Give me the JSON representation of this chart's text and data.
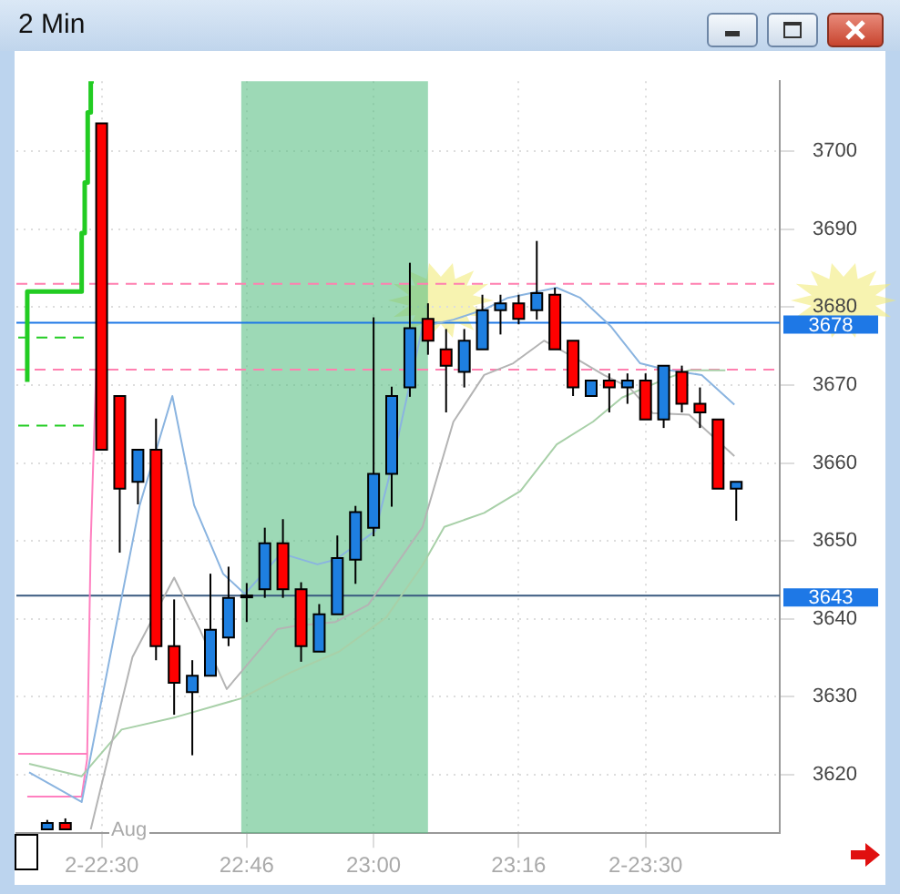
{
  "chart_data": {
    "type": "candlestick",
    "title": "2 Min",
    "xlim": [
      22.3433,
      23.7467
    ],
    "ylim": [
      3612.5,
      3709
    ],
    "xticks": [
      {
        "value": 22.5,
        "label": "2-22:30"
      },
      {
        "value": 22.7667,
        "label": "22:46"
      },
      {
        "value": 23,
        "label": "23:00"
      },
      {
        "value": 23.2667,
        "label": "23:16"
      },
      {
        "value": 23.5,
        "label": "2-23:30"
      }
    ],
    "yticks": [
      3620,
      3630,
      3640,
      3650,
      3660,
      3670,
      3680,
      3690,
      3700
    ],
    "grid": true,
    "legend": false,
    "marker": "none",
    "annotations": [
      "Aug"
    ],
    "ref_lines": [
      {
        "axis": "y",
        "value": 3683,
        "color": "#ff80b0",
        "line_style": "dashed"
      },
      {
        "axis": "y",
        "value": 3672,
        "color": "#ff80b0",
        "line_style": "dashed"
      },
      {
        "axis": "y",
        "value": 3678,
        "label": "3678",
        "color": "#1e78e6"
      },
      {
        "axis": "y",
        "value": 3643,
        "label": "3643",
        "color": "#3a5a80"
      }
    ],
    "bands": [
      {
        "axis": "x",
        "from": 22.7567,
        "to": 23.1,
        "color": "#5cbf85"
      }
    ],
    "series": [
      {
        "x": [
          22.4,
          22.4333,
          22.5,
          22.5333,
          22.5667,
          22.6,
          22.6333,
          22.6667,
          22.7,
          22.7333,
          22.7667,
          22.8,
          22.8333,
          22.8667,
          22.9,
          22.9333,
          22.9667,
          23,
          23.0333,
          23.0667,
          23.1,
          23.1333,
          23.1667,
          23.2,
          23.2333,
          23.2667,
          23.3,
          23.3333,
          23.3667,
          23.4,
          23.4333,
          23.4667,
          23.5,
          23.5333,
          23.5667,
          23.6,
          23.6333,
          23.6667
        ],
        "colors": [
          "#1e7fe0",
          "#ff0000",
          "#ff0000",
          "#ff0000",
          "#1e7fe0",
          "#ff0000",
          "#ff0000",
          "#1e7fe0",
          "#1e7fe0",
          "#1e7fe0",
          "#1e7fe0",
          "#1e7fe0",
          "#ff0000",
          "#ff0000",
          "#1e7fe0",
          "#1e7fe0",
          "#1e7fe0",
          "#1e7fe0",
          "#1e7fe0",
          "#1e7fe0",
          "#ff0000",
          "#ff0000",
          "#1e7fe0",
          "#1e7fe0",
          "#1e7fe0",
          "#ff0000",
          "#1e7fe0",
          "#ff0000",
          "#ff0000",
          "#1e7fe0",
          "#ff0000",
          "#1e7fe0",
          "#ff0000",
          "#1e7fe0",
          "#ff0000",
          "#ff0000",
          "#ff0000",
          "#1e7fe0"
        ],
        "ohlc": [
          [
            3613,
            3614.2,
            3613,
            3613.8
          ],
          [
            3613.8,
            3614.4,
            3613,
            3613
          ],
          [
            3703.6,
            3703.6,
            3661.7,
            3661.7
          ],
          [
            3668.6,
            3668.6,
            3648.5,
            3656.7
          ],
          [
            3657.6,
            3661.7,
            3654.7,
            3661.7
          ],
          [
            3661.7,
            3665.7,
            3634.7,
            3636.5
          ],
          [
            3636.5,
            3642.5,
            3627.7,
            3631.8
          ],
          [
            3630.6,
            3634.7,
            3622.5,
            3632.7
          ],
          [
            3632.7,
            3645.8,
            3632.7,
            3638.6
          ],
          [
            3637.6,
            3646.7,
            3636.5,
            3642.7
          ],
          [
            3643,
            3644.6,
            3639.6,
            3643
          ],
          [
            3643.8,
            3651.7,
            3642.7,
            3649.7
          ],
          [
            3649.7,
            3652.8,
            3642.7,
            3643.8
          ],
          [
            3643.8,
            3644.7,
            3634.5,
            3636.5
          ],
          [
            3635.8,
            3641.9,
            3635.8,
            3640.6
          ],
          [
            3640.6,
            3650.7,
            3640.6,
            3647.8
          ],
          [
            3647.6,
            3654.5,
            3644.5,
            3653.7
          ],
          [
            3651.7,
            3678.7,
            3650.6,
            3658.6
          ],
          [
            3658.6,
            3669.8,
            3654.4,
            3668.6
          ],
          [
            3669.7,
            3685.7,
            3668.5,
            3677.3
          ],
          [
            3678.5,
            3680.5,
            3673.9,
            3675.7
          ],
          [
            3674.6,
            3677.2,
            3666.5,
            3672.5
          ],
          [
            3671.7,
            3677.2,
            3669.7,
            3675.7
          ],
          [
            3674.6,
            3681.6,
            3674.6,
            3679.6
          ],
          [
            3679.6,
            3681.6,
            3676.5,
            3680.5
          ],
          [
            3680.5,
            3681.6,
            3677.8,
            3678.5
          ],
          [
            3679.6,
            3688.5,
            3678.4,
            3681.8
          ],
          [
            3681.6,
            3682.5,
            3674.6,
            3674.6
          ],
          [
            3675.7,
            3675.7,
            3668.6,
            3669.7
          ],
          [
            3668.6,
            3670.6,
            3668.6,
            3670.6
          ],
          [
            3670.6,
            3671.5,
            3666.5,
            3669.7
          ],
          [
            3669.7,
            3671.5,
            3667.6,
            3670.6
          ],
          [
            3670.6,
            3671.5,
            3665.6,
            3665.6
          ],
          [
            3665.6,
            3672.5,
            3664.5,
            3672.5
          ],
          [
            3671.7,
            3672.5,
            3666.5,
            3667.6
          ],
          [
            3667.6,
            3669.7,
            3664.5,
            3666.5
          ],
          [
            3665.6,
            3665.6,
            3656.7,
            3656.7
          ],
          [
            3656.7,
            3657.6,
            3652.6,
            3657.6
          ]
        ]
      },
      {
        "type": "line",
        "color": "#8ab4e0",
        "x": [
          22.3667,
          22.4633,
          22.57,
          22.63,
          22.67,
          22.7233,
          22.7633,
          22.83,
          22.8967,
          22.93,
          23.0033,
          23.03,
          23.09,
          23.1467,
          23.2033,
          23.2467,
          23.3367,
          23.38,
          23.4367,
          23.49,
          23.5367,
          23.6033,
          23.6633
        ],
        "values": [
          3620.3,
          3616.5,
          3654.6,
          3668.6,
          3654.6,
          3645.8,
          3643.2,
          3648.4,
          3647,
          3647.6,
          3651.3,
          3658.6,
          3677.5,
          3678.4,
          3679.7,
          3681.2,
          3682.5,
          3681.2,
          3677.5,
          3672.8,
          3672,
          3671.3,
          3667.5
        ]
      },
      {
        "type": "line",
        "color": "#b4b4b4",
        "x": [
          22.48,
          22.5567,
          22.6333,
          22.68,
          22.73,
          22.8233,
          22.8567,
          22.93,
          22.99,
          23.09,
          23.1467,
          23.2033,
          23.2567,
          23.3133,
          23.37,
          23.4233,
          23.47,
          23.5133,
          23.58,
          23.6633
        ],
        "values": [
          3613,
          3635.1,
          3645.3,
          3638.7,
          3631,
          3638.7,
          3639.1,
          3639.6,
          3641.8,
          3651.8,
          3665.3,
          3671.3,
          3672.8,
          3675.7,
          3673.5,
          3671.3,
          3669.7,
          3666.4,
          3666.2,
          3660.9
        ]
      },
      {
        "type": "line",
        "color": "#a8d0a8",
        "x": [
          22.3667,
          22.4633,
          22.5367,
          22.6367,
          22.7567,
          22.8467,
          22.9367,
          23.0233,
          23.09,
          23.13,
          23.2033,
          23.27,
          23.3367,
          23.4033,
          23.4567,
          23.5367,
          23.58,
          23.6467
        ],
        "values": [
          3621.4,
          3619.8,
          3625.8,
          3627.4,
          3629.8,
          3633.1,
          3635.8,
          3640.2,
          3646.9,
          3651.8,
          3653.6,
          3656.4,
          3662.4,
          3665.3,
          3668.4,
          3670.8,
          3671.9,
          3671.9
        ]
      },
      {
        "type": "line",
        "color": "#ff80c0",
        "x": [
          22.3633,
          22.4633,
          22.4733,
          22.48,
          22.49
        ],
        "values": [
          3617.2,
          3617.2,
          3622,
          3650,
          3672
        ]
      },
      {
        "type": "line",
        "color": "#ff80c0",
        "x": [
          22.3467,
          22.4733
        ],
        "values": [
          3622.7,
          3622.7
        ]
      },
      {
        "type": "step",
        "color": "#22cc22",
        "x": [
          22.3633,
          22.4633,
          22.4689,
          22.4744,
          22.48,
          22.4856
        ],
        "values": [
          3670.4,
          3682,
          3689.5,
          3696,
          3705,
          3709
        ]
      },
      {
        "type": "line",
        "color": "#22cc22",
        "line_style": "dashed",
        "x": [
          22.3467,
          22.4733
        ],
        "values": [
          3676.1,
          3676.1
        ]
      },
      {
        "type": "line",
        "color": "#22cc22",
        "line_style": "dashed",
        "x": [
          22.3467,
          22.4733
        ],
        "values": [
          3664.8,
          3664.8
        ]
      }
    ]
  }
}
